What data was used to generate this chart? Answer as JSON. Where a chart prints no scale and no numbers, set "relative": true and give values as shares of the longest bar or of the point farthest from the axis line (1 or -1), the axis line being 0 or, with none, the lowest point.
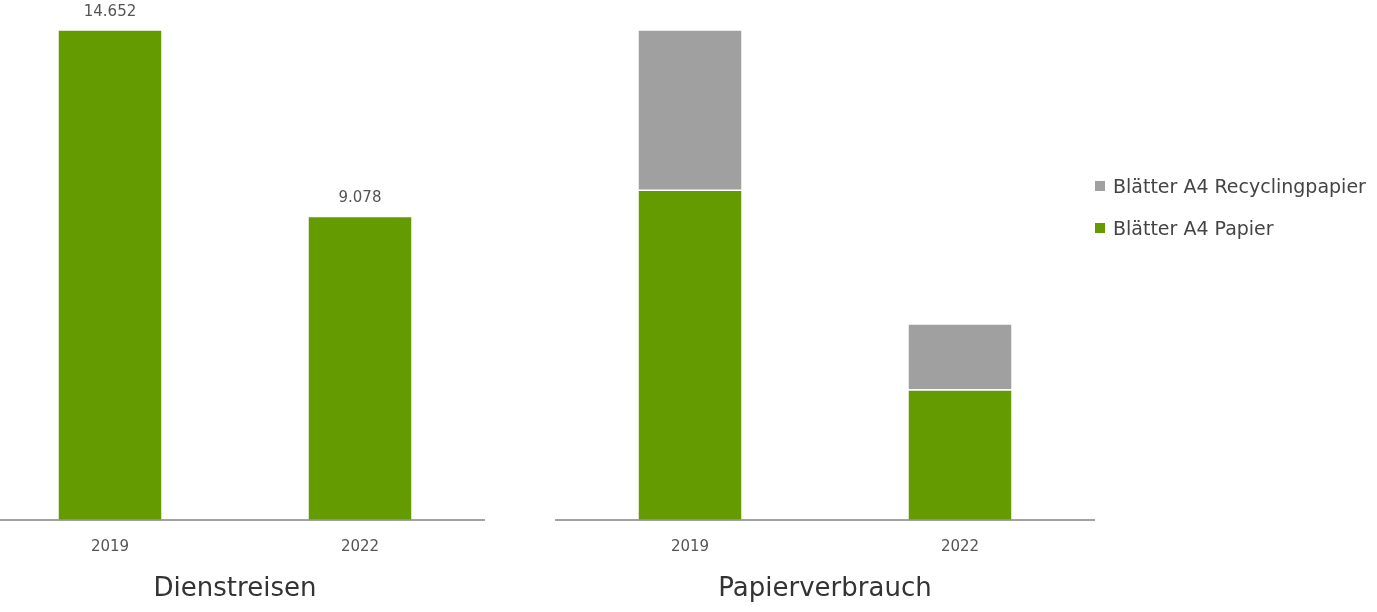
{
  "chart_data": [
    {
      "type": "bar",
      "title": "Dienstreisen",
      "categories": [
        "2019",
        "2022"
      ],
      "values": [
        14652,
        9078
      ],
      "value_labels": [
        "14.652",
        "9.078"
      ],
      "color": "#649b00",
      "tick_labels": "x"
    },
    {
      "type": "bar",
      "title": "Papierverbrauch",
      "categories": [
        "2019",
        "2022"
      ],
      "stacked": true,
      "relative": true,
      "legend": "right",
      "series": [
        {
          "name": "Blätter A4 Papier",
          "color": "#649b00",
          "values": [
            0.673,
            0.266
          ]
        },
        {
          "name": "Blätter A4 Recyclingpapier",
          "color": "#a0a0a0",
          "values": [
            0.327,
            0.134
          ]
        }
      ]
    }
  ]
}
